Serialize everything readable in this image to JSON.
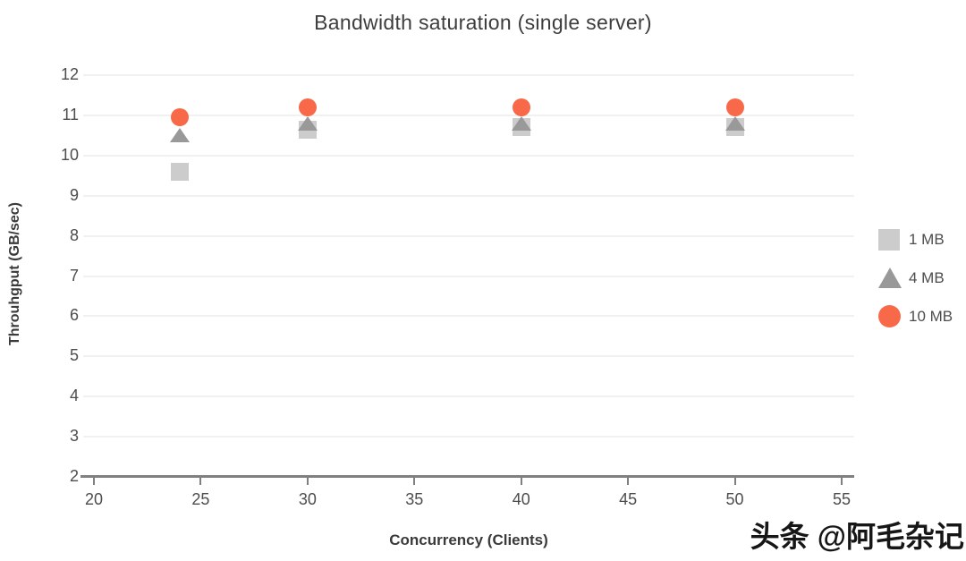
{
  "watermark": "头条 @阿毛杂记",
  "colors": {
    "series_1mb": "#cccccc",
    "series_4mb": "#999999",
    "series_10mb": "#f8694a",
    "gridline": "#f1f1f1",
    "axis_line": "#808080",
    "tick_text": "#4d4d4d",
    "title_text": "#3d3d3d"
  },
  "chart_data": {
    "type": "scatter",
    "title": "Bandwidth saturation (single server)",
    "xlabel": "Concurrency (Clients)",
    "ylabel": "Throuhgput (GB/sec)",
    "x": [
      24,
      30,
      40,
      50
    ],
    "series": [
      {
        "name": "1 MB",
        "marker": "square",
        "color": "#cccccc",
        "values": [
          9.6,
          10.65,
          10.7,
          10.7
        ]
      },
      {
        "name": "4 MB",
        "marker": "triangle",
        "color": "#999999",
        "values": [
          10.5,
          10.8,
          10.8,
          10.8
        ]
      },
      {
        "name": "10 MB",
        "marker": "circle",
        "color": "#f8694a",
        "values": [
          10.95,
          11.2,
          11.2,
          11.2
        ]
      }
    ],
    "xlim": [
      20,
      55
    ],
    "ylim": [
      2,
      12
    ],
    "x_ticks": [
      20,
      25,
      30,
      35,
      40,
      45,
      50,
      55
    ],
    "y_ticks": [
      2,
      3,
      4,
      5,
      6,
      7,
      8,
      9,
      10,
      11,
      12
    ],
    "grid": "horizontal-only",
    "legend_position": "right"
  }
}
